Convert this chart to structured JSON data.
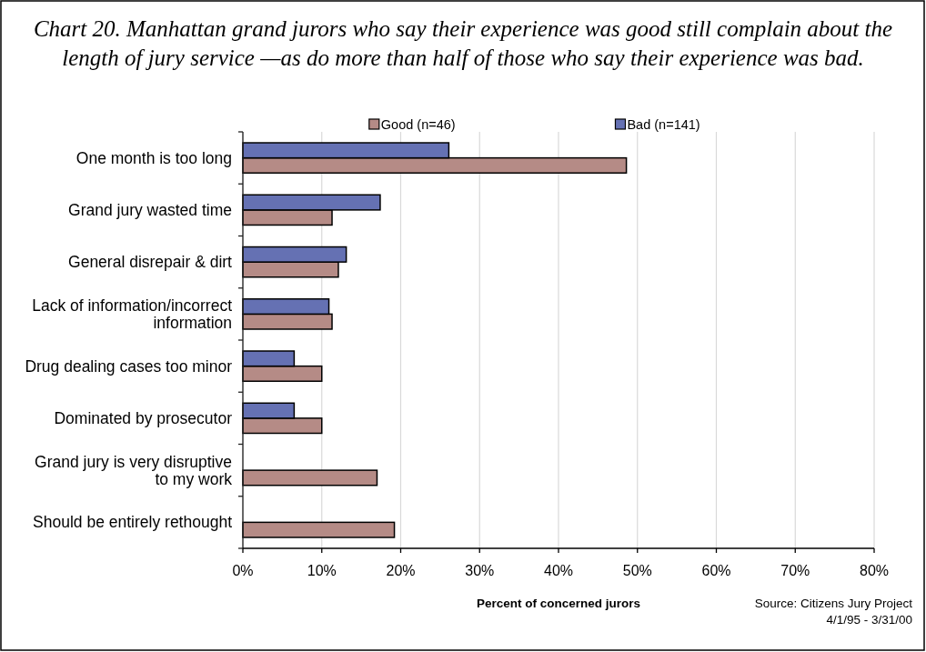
{
  "chart_data": {
    "type": "bar",
    "orientation": "horizontal",
    "title": "Chart 20. Manhattan grand jurors who say their experience was good still complain about the length of jury service —as do more than half of those who say their experience was bad.",
    "xlabel": "Percent of concerned jurors",
    "annotations": [
      "Source: Citizens Jury Project",
      "4/1/95 - 3/31/00"
    ],
    "categories": [
      "One month is too long",
      "Grand jury wasted time",
      "General disrepair & dirt",
      "Lack of information/incorrect information",
      "Drug dealing cases too minor",
      "Dominated by prosecutor",
      "Grand jury is very disruptive to my work",
      "Should be entirely rethought"
    ],
    "series": [
      {
        "name": "Good (n=46)",
        "color": "#b58b86",
        "values": [
          48.6,
          11.3,
          12.1,
          11.3,
          10.0,
          10.0,
          17.0,
          19.2
        ]
      },
      {
        "name": "Bad (n=141)",
        "color": "#6571b3",
        "values": [
          26.1,
          17.4,
          13.1,
          10.9,
          6.5,
          6.5,
          null,
          null
        ]
      }
    ],
    "xlim": [
      0,
      80
    ],
    "xticks": [
      {
        "value": 0,
        "label": "0%"
      },
      {
        "value": 10,
        "label": "10%"
      },
      {
        "value": 20,
        "label": "20%"
      },
      {
        "value": 30,
        "label": "30%"
      },
      {
        "value": 40,
        "label": "40%"
      },
      {
        "value": 50,
        "label": "50%"
      },
      {
        "value": 60,
        "label": "60%"
      },
      {
        "value": 70,
        "label": "70%"
      },
      {
        "value": 80,
        "label": "80%"
      }
    ],
    "grid": "x",
    "legend": "top"
  }
}
